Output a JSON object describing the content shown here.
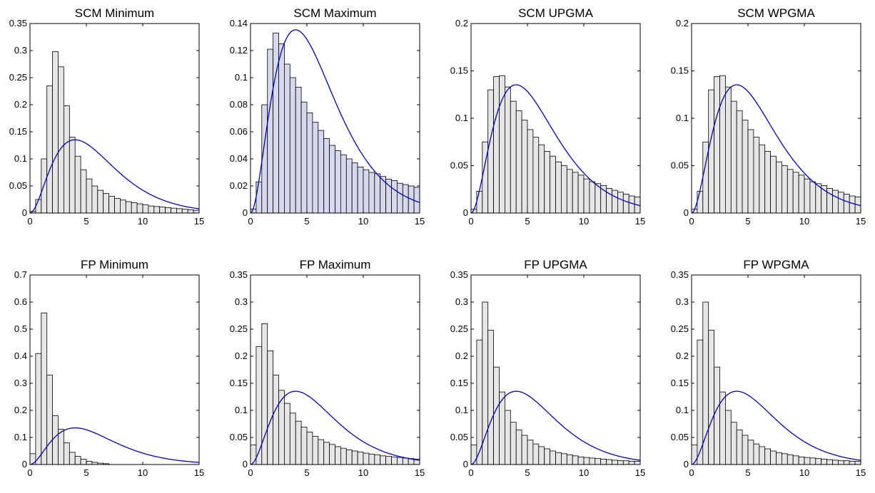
{
  "colors": {
    "bar_fill": "#e6e6e6",
    "bar_fill_blue": "#d6d8ee",
    "bar_edge_blue": "#1c1cb4",
    "curve": "#0000cc"
  },
  "chart_data": [
    {
      "type": "bar",
      "title": "SCM Minimum",
      "xlim": [
        0,
        15
      ],
      "ylim": [
        0,
        0.35
      ],
      "xticks": [
        "0",
        "5",
        "10",
        "15"
      ],
      "yticks": [
        "0",
        "0.05",
        "0.1",
        "0.15",
        "0.2",
        "0.25",
        "0.3",
        "0.35"
      ],
      "bin_width": 0.5,
      "bar_style": "gray",
      "values": [
        0.003,
        0.025,
        0.1,
        0.235,
        0.298,
        0.27,
        0.198,
        0.14,
        0.105,
        0.08,
        0.063,
        0.05,
        0.042,
        0.036,
        0.031,
        0.027,
        0.024,
        0.021,
        0.019,
        0.017,
        0.015,
        0.013,
        0.012,
        0.011,
        0.01,
        0.009,
        0.008,
        0.007,
        0.006,
        0.005
      ],
      "curve": {
        "type": "chi-square",
        "df": 6
      }
    },
    {
      "type": "bar",
      "title": "SCM Maximum",
      "xlim": [
        0,
        15
      ],
      "ylim": [
        0,
        0.14
      ],
      "xticks": [
        "0",
        "5",
        "10",
        "15"
      ],
      "yticks": [
        "0",
        "0.02",
        "0.04",
        "0.06",
        "0.08",
        "0.1",
        "0.12",
        "0.14"
      ],
      "bin_width": 0.5,
      "bar_style": "blue",
      "values": [
        0.003,
        0.023,
        0.08,
        0.121,
        0.133,
        0.125,
        0.11,
        0.1,
        0.093,
        0.082,
        0.074,
        0.067,
        0.061,
        0.055,
        0.05,
        0.046,
        0.043,
        0.04,
        0.037,
        0.034,
        0.032,
        0.03,
        0.029,
        0.027,
        0.025,
        0.024,
        0.022,
        0.021,
        0.02,
        0.019
      ],
      "curve": {
        "type": "chi-square",
        "df": 6
      }
    },
    {
      "type": "bar",
      "title": "SCM UPGMA",
      "xlim": [
        0,
        15
      ],
      "ylim": [
        0,
        0.2
      ],
      "xticks": [
        "0",
        "5",
        "10",
        "15"
      ],
      "yticks": [
        "0",
        "0.05",
        "0.1",
        "0.15",
        "0.2"
      ],
      "bin_width": 0.5,
      "bar_style": "gray",
      "values": [
        0.004,
        0.023,
        0.075,
        0.13,
        0.144,
        0.145,
        0.133,
        0.118,
        0.108,
        0.098,
        0.088,
        0.08,
        0.072,
        0.065,
        0.06,
        0.054,
        0.05,
        0.046,
        0.043,
        0.04,
        0.036,
        0.033,
        0.031,
        0.029,
        0.026,
        0.024,
        0.022,
        0.02,
        0.018,
        0.017
      ],
      "curve": {
        "type": "chi-square",
        "df": 6
      }
    },
    {
      "type": "bar",
      "title": "SCM WPGMA",
      "xlim": [
        0,
        15
      ],
      "ylim": [
        0,
        0.2
      ],
      "xticks": [
        "0",
        "5",
        "10",
        "15"
      ],
      "yticks": [
        "0",
        "0.05",
        "0.1",
        "0.15",
        "0.2"
      ],
      "bin_width": 0.5,
      "bar_style": "gray",
      "values": [
        0.004,
        0.023,
        0.075,
        0.13,
        0.144,
        0.145,
        0.133,
        0.118,
        0.108,
        0.098,
        0.088,
        0.08,
        0.072,
        0.065,
        0.06,
        0.054,
        0.05,
        0.046,
        0.043,
        0.04,
        0.036,
        0.033,
        0.031,
        0.029,
        0.026,
        0.024,
        0.022,
        0.02,
        0.018,
        0.017
      ],
      "curve": {
        "type": "chi-square",
        "df": 6
      }
    },
    {
      "type": "bar",
      "title": "FP Minimum",
      "xlim": [
        0,
        15
      ],
      "ylim": [
        0,
        0.7
      ],
      "xticks": [
        "0",
        "5",
        "10",
        "15"
      ],
      "yticks": [
        "0",
        "0.1",
        "0.2",
        "0.3",
        "0.4",
        "0.5",
        "0.6",
        "0.7"
      ],
      "bin_width": 0.5,
      "bar_style": "gray",
      "values": [
        0.04,
        0.41,
        0.56,
        0.33,
        0.18,
        0.13,
        0.08,
        0.045,
        0.03,
        0.02,
        0.012,
        0.008,
        0.005,
        0.003,
        0,
        0,
        0,
        0,
        0,
        0,
        0,
        0,
        0,
        0,
        0,
        0,
        0,
        0,
        0,
        0
      ],
      "curve": {
        "type": "chi-square",
        "df": 6
      }
    },
    {
      "type": "bar",
      "title": "FP Maximum",
      "xlim": [
        0,
        15
      ],
      "ylim": [
        0,
        0.35
      ],
      "xticks": [
        "0",
        "5",
        "10",
        "15"
      ],
      "yticks": [
        "0",
        "0.05",
        "0.1",
        "0.15",
        "0.2",
        "0.25",
        "0.3",
        "0.35"
      ],
      "bin_width": 0.5,
      "bar_style": "gray",
      "values": [
        0.036,
        0.218,
        0.26,
        0.21,
        0.165,
        0.137,
        0.113,
        0.095,
        0.08,
        0.069,
        0.06,
        0.052,
        0.046,
        0.041,
        0.037,
        0.033,
        0.03,
        0.027,
        0.025,
        0.023,
        0.021,
        0.019,
        0.018,
        0.016,
        0.015,
        0.014,
        0.013,
        0.012,
        0.011,
        0.01
      ],
      "curve": {
        "type": "chi-square",
        "df": 6
      }
    },
    {
      "type": "bar",
      "title": "FP UPGMA",
      "xlim": [
        0,
        15
      ],
      "ylim": [
        0,
        0.35
      ],
      "xticks": [
        "0",
        "5",
        "10",
        "15"
      ],
      "yticks": [
        "0",
        "0.05",
        "0.1",
        "0.15",
        "0.2",
        "0.25",
        "0.3",
        "0.35"
      ],
      "bin_width": 0.5,
      "bar_style": "gray",
      "values": [
        0.036,
        0.23,
        0.3,
        0.248,
        0.18,
        0.134,
        0.1,
        0.078,
        0.064,
        0.054,
        0.045,
        0.038,
        0.033,
        0.029,
        0.025,
        0.022,
        0.02,
        0.018,
        0.016,
        0.014,
        0.013,
        0.012,
        0.011,
        0.01,
        0.009,
        0.008,
        0.007,
        0.007,
        0.006,
        0.006
      ],
      "curve": {
        "type": "chi-square",
        "df": 6
      }
    },
    {
      "type": "bar",
      "title": "FP WPGMA",
      "xlim": [
        0,
        15
      ],
      "ylim": [
        0,
        0.35
      ],
      "xticks": [
        "0",
        "5",
        "10",
        "15"
      ],
      "yticks": [
        "0",
        "0.05",
        "0.1",
        "0.15",
        "0.2",
        "0.25",
        "0.3",
        "0.35"
      ],
      "bin_width": 0.5,
      "bar_style": "gray",
      "values": [
        0.036,
        0.23,
        0.3,
        0.248,
        0.18,
        0.134,
        0.1,
        0.078,
        0.064,
        0.054,
        0.045,
        0.038,
        0.033,
        0.029,
        0.025,
        0.022,
        0.02,
        0.018,
        0.016,
        0.014,
        0.013,
        0.012,
        0.011,
        0.01,
        0.009,
        0.008,
        0.007,
        0.007,
        0.006,
        0.006
      ],
      "curve": {
        "type": "chi-square",
        "df": 6
      }
    }
  ]
}
